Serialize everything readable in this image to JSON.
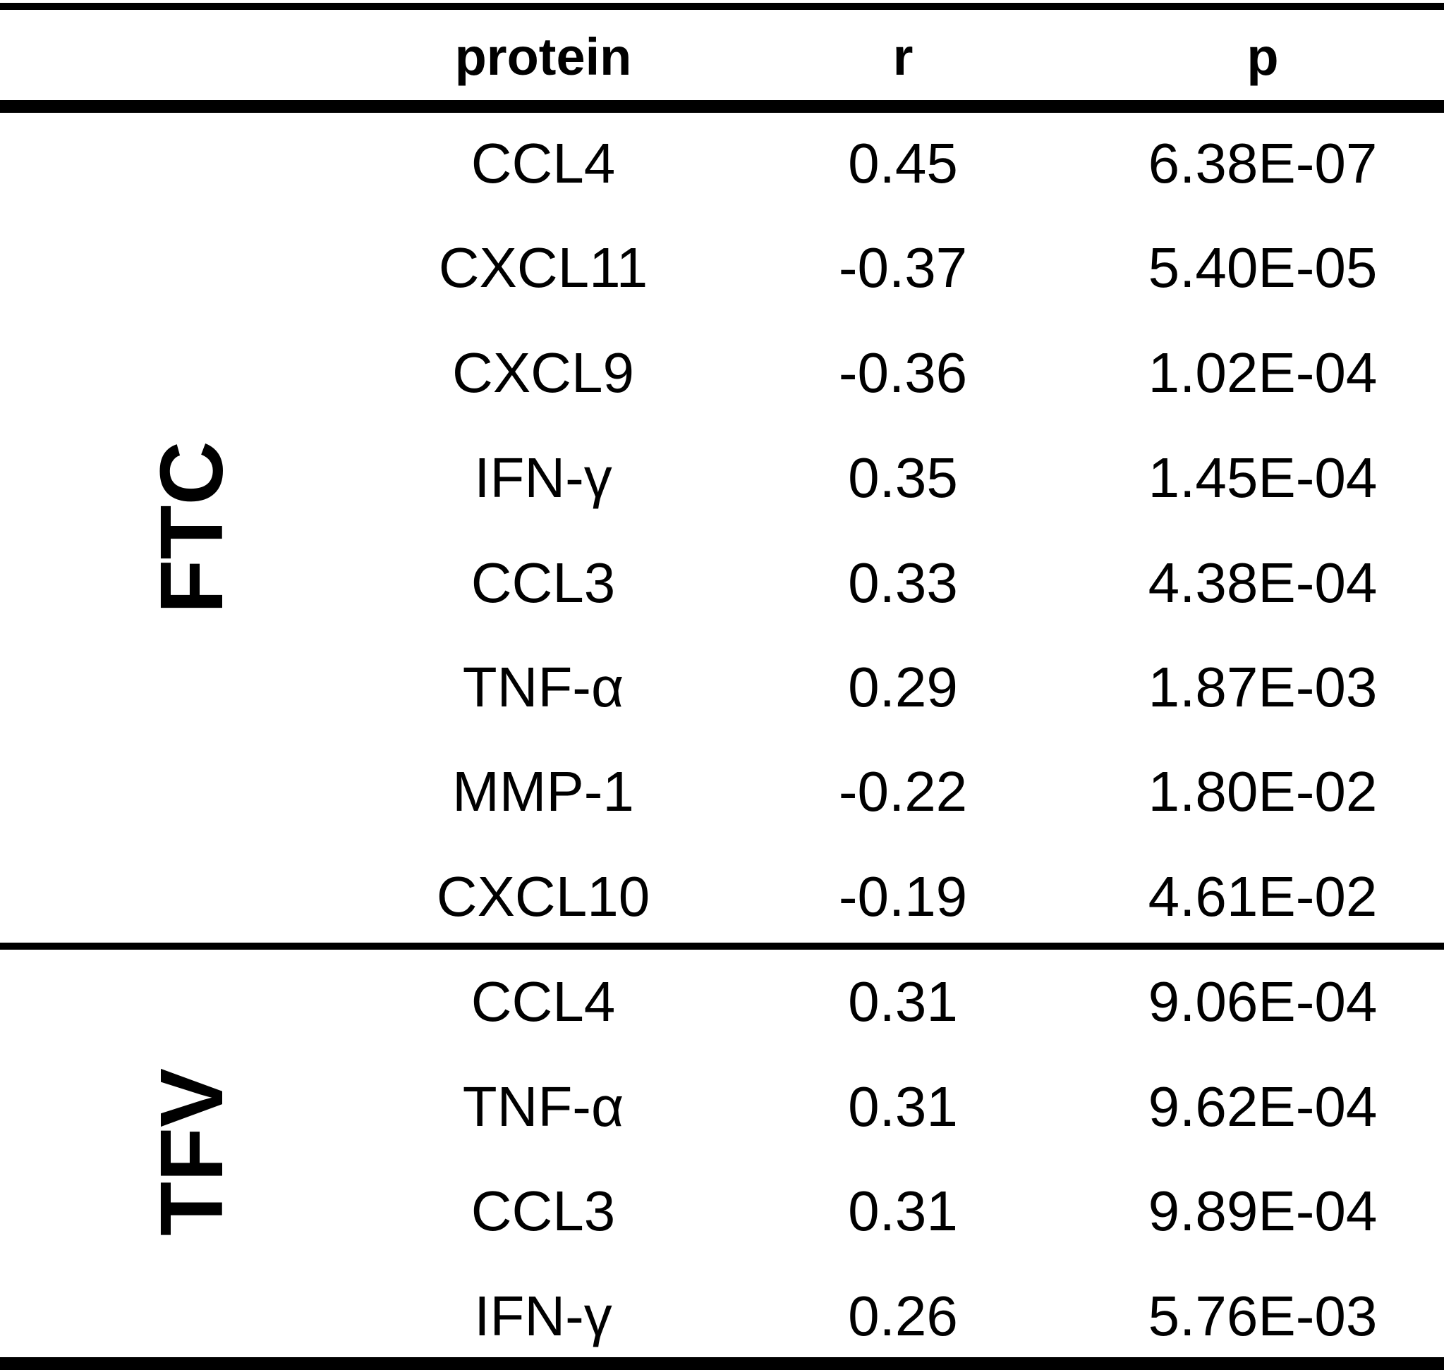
{
  "chart_data": {
    "type": "table",
    "columns": [
      "",
      "protein",
      "r",
      "p"
    ],
    "groups": [
      {
        "label": "FTC",
        "rows": [
          {
            "protein": "CCL4",
            "r": "0.45",
            "p": "6.38E-07"
          },
          {
            "protein": "CXCL11",
            "r": "-0.37",
            "p": "5.40E-05"
          },
          {
            "protein": "CXCL9",
            "r": "-0.36",
            "p": "1.02E-04"
          },
          {
            "protein": "IFN-γ",
            "r": "0.35",
            "p": "1.45E-04"
          },
          {
            "protein": "CCL3",
            "r": "0.33",
            "p": "4.38E-04"
          },
          {
            "protein": "TNF-α",
            "r": "0.29",
            "p": "1.87E-03"
          },
          {
            "protein": "MMP-1",
            "r": "-0.22",
            "p": "1.80E-02"
          },
          {
            "protein": "CXCL10",
            "r": "-0.19",
            "p": "4.61E-02"
          }
        ]
      },
      {
        "label": "TFV",
        "rows": [
          {
            "protein": "CCL4",
            "r": "0.31",
            "p": "9.06E-04"
          },
          {
            "protein": "TNF-α",
            "r": "0.31",
            "p": "9.62E-04"
          },
          {
            "protein": "CCL3",
            "r": "0.31",
            "p": "9.89E-04"
          },
          {
            "protein": "IFN-γ",
            "r": "0.26",
            "p": "5.76E-03"
          }
        ]
      }
    ]
  }
}
